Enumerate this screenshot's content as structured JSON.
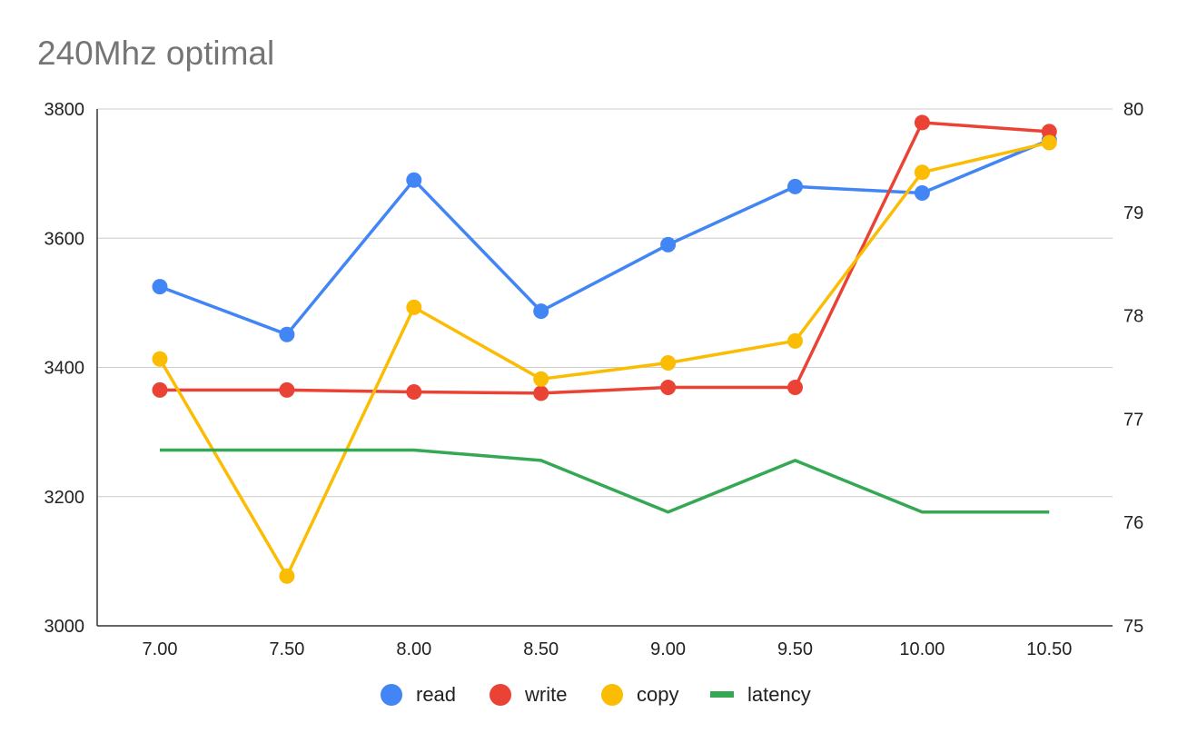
{
  "chart_data": {
    "type": "line",
    "title": "240Mhz optimal",
    "xlabel": "",
    "ylabel": "",
    "x": [
      "7.00",
      "7.50",
      "8.00",
      "8.50",
      "9.00",
      "9.50",
      "10.00",
      "10.50"
    ],
    "y_left": {
      "lim": [
        3000,
        3800
      ],
      "ticks": [
        "3000",
        "3200",
        "3400",
        "3600",
        "3800"
      ]
    },
    "y_right": {
      "lim": [
        75,
        80
      ],
      "ticks": [
        "75",
        "76",
        "77",
        "78",
        "79",
        "80"
      ]
    },
    "grid": true,
    "legend_position": "bottom",
    "series": [
      {
        "name": "read",
        "axis": "left",
        "color": "#4285F4",
        "markers": true,
        "values": [
          3525,
          3451,
          3690,
          3487,
          3590,
          3680,
          3670,
          3752
        ]
      },
      {
        "name": "write",
        "axis": "left",
        "color": "#EA4335",
        "markers": true,
        "values": [
          3365,
          3365,
          3362,
          3360,
          3369,
          3369,
          3779,
          3765
        ]
      },
      {
        "name": "copy",
        "axis": "left",
        "color": "#FBBC04",
        "markers": true,
        "values": [
          3413,
          3077,
          3493,
          3382,
          3407,
          3441,
          3702,
          3748
        ]
      },
      {
        "name": "latency",
        "axis": "right",
        "color": "#34A853",
        "markers": false,
        "values": [
          76.7,
          76.7,
          76.7,
          76.6,
          76.1,
          76.6,
          76.1,
          76.1
        ]
      }
    ]
  }
}
